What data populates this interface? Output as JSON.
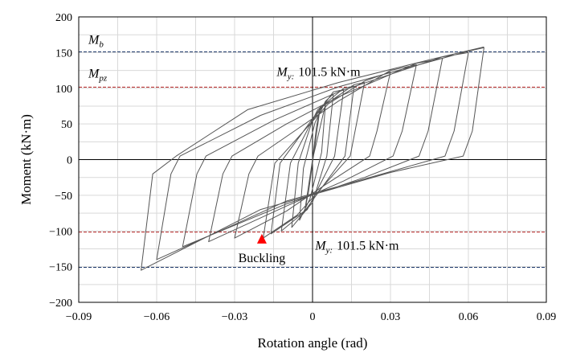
{
  "chart_data": {
    "type": "line",
    "title": "",
    "xlabel": "Rotation angle (rad)",
    "ylabel": "Moment (kN·m)",
    "xlim": [
      -0.09,
      0.09
    ],
    "ylim": [
      -200,
      200
    ],
    "x_ticks": [
      -0.09,
      -0.06,
      -0.03,
      0,
      0.03,
      0.06,
      0.09
    ],
    "x_tick_labels": [
      "−0.09",
      "−0.06",
      "−0.03",
      "0",
      "0.03",
      "0.06",
      "0.09"
    ],
    "y_ticks": [
      -200,
      -150,
      -100,
      -50,
      0,
      50,
      100,
      150,
      200
    ],
    "y_tick_labels": [
      "−200",
      "−150",
      "−100",
      "−50",
      "0",
      "50",
      "100",
      "150",
      "200"
    ],
    "grid": true,
    "curve_color": "#555555",
    "reference_lines": [
      {
        "name": "Mb",
        "y": 151,
        "style": "dashed",
        "color": "#1f3a6b"
      },
      {
        "name": "Mb",
        "y": -151,
        "style": "dashed",
        "color": "#1f3a6b"
      },
      {
        "name": "My",
        "y": 101.5,
        "style": "dashed",
        "color": "#b22222"
      },
      {
        "name": "My",
        "y": -101.5,
        "style": "dashed",
        "color": "#b22222"
      }
    ],
    "annotations": {
      "mb": {
        "letter": "M",
        "sub": "b"
      },
      "mpz": {
        "letter": "M",
        "sub": "pz"
      },
      "my_top": {
        "letter": "M",
        "sub": "y:",
        "value": "101.5 kN·m"
      },
      "my_bottom": {
        "letter": "M",
        "sub": "y:",
        "value": "101.5 kN·m"
      },
      "buckling": {
        "label": "Buckling",
        "x": -0.0195,
        "y": -112,
        "marker": "triangle",
        "color": "#ff0000"
      }
    },
    "series": [
      {
        "values": [
          [
            0,
            0
          ],
          [
            0.0015,
            45
          ],
          [
            0.003,
            75
          ],
          [
            -0.0015,
            -45
          ],
          [
            -0.003,
            -72
          ],
          [
            0,
            0
          ],
          [
            0.005,
            78
          ],
          [
            0.0035,
            10
          ],
          [
            -0.001,
            -55
          ],
          [
            -0.005,
            -85
          ],
          [
            -0.0035,
            -12
          ],
          [
            0.001,
            52
          ],
          [
            0.005,
            82
          ],
          [
            0.008,
            92
          ],
          [
            0.0055,
            5
          ],
          [
            0.0,
            -60
          ],
          [
            -0.008,
            -95
          ],
          [
            -0.0055,
            -5
          ],
          [
            0.0,
            55
          ],
          [
            0.008,
            95
          ],
          [
            0.012,
            98
          ],
          [
            0.0085,
            5
          ],
          [
            -0.002,
            -70
          ],
          [
            -0.012,
            -100
          ],
          [
            -0.0085,
            -5
          ],
          [
            0.002,
            70
          ],
          [
            0.012,
            100
          ],
          [
            0.016,
            103
          ],
          [
            0.0125,
            5
          ],
          [
            -0.003,
            -72
          ],
          [
            -0.016,
            -104
          ],
          [
            -0.0125,
            -5
          ],
          [
            0.003,
            72
          ],
          [
            0.016,
            105
          ],
          [
            0.02,
            108
          ],
          [
            0.0145,
            5
          ],
          [
            -0.006,
            -78
          ],
          [
            -0.019,
            -110
          ],
          [
            -0.0145,
            -5
          ],
          [
            0.006,
            78
          ],
          [
            0.02,
            110
          ]
        ]
      },
      {
        "values": [
          [
            0.02,
            110
          ],
          [
            0.03,
            123
          ],
          [
            0.0248,
            40
          ],
          [
            0.022,
            5
          ],
          [
            0.005,
            -35
          ],
          [
            -0.01,
            -72
          ],
          [
            -0.03,
            -110
          ],
          [
            -0.0245,
            -20
          ],
          [
            -0.021,
            5
          ],
          [
            -0.005,
            45
          ],
          [
            0.01,
            82
          ],
          [
            0.03,
            125
          ],
          [
            0.04,
            133
          ],
          [
            0.0345,
            40
          ],
          [
            0.031,
            5
          ],
          [
            0.012,
            -30
          ],
          [
            -0.01,
            -65
          ],
          [
            -0.04,
            -115
          ],
          [
            -0.0345,
            -20
          ],
          [
            -0.031,
            5
          ],
          [
            -0.01,
            50
          ],
          [
            0.01,
            88
          ],
          [
            0.04,
            135
          ],
          [
            0.05,
            142
          ],
          [
            0.0445,
            40
          ],
          [
            0.041,
            5
          ],
          [
            0.02,
            -25
          ],
          [
            -0.01,
            -62
          ],
          [
            -0.05,
            -122
          ],
          [
            -0.0445,
            -20
          ],
          [
            -0.041,
            5
          ],
          [
            -0.015,
            55
          ],
          [
            0.01,
            95
          ],
          [
            0.05,
            144
          ],
          [
            0.06,
            150
          ],
          [
            0.0545,
            40
          ],
          [
            0.051,
            5
          ],
          [
            0.025,
            -22
          ],
          [
            -0.01,
            -58
          ],
          [
            -0.06,
            -140
          ],
          [
            -0.0545,
            -20
          ],
          [
            -0.051,
            5
          ],
          [
            -0.02,
            62
          ],
          [
            0.01,
            102
          ],
          [
            0.06,
            152
          ],
          [
            0.066,
            157
          ],
          [
            0.0615,
            40
          ],
          [
            0.058,
            5
          ],
          [
            0.03,
            -18
          ],
          [
            -0.02,
            -70
          ],
          [
            -0.066,
            -155
          ],
          [
            -0.0615,
            -20
          ],
          [
            -0.0525,
            5
          ],
          [
            -0.025,
            70
          ],
          [
            0.01,
            108
          ],
          [
            0.045,
            140
          ],
          [
            0.066,
            158
          ]
        ]
      }
    ]
  }
}
